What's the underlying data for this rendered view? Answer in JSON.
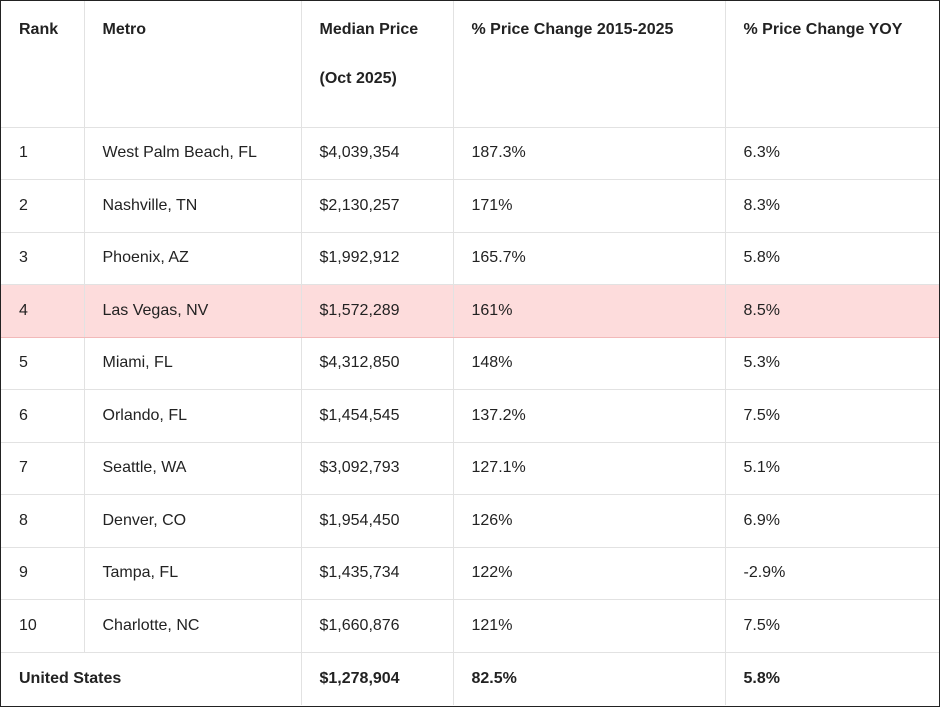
{
  "table": {
    "header": [
      "Rank",
      "Metro",
      [
        "Median Price",
        "(Oct 2025)"
      ],
      "% Price Change 2015-2025",
      "% Price Change YOY"
    ],
    "rows": [
      [
        "1",
        "West Palm Beach, FL",
        "$4,039,354",
        "187.3%",
        "6.3%"
      ],
      [
        "2",
        "Nashville, TN",
        "$2,130,257",
        "171%",
        "8.3%"
      ],
      [
        "3",
        "Phoenix, AZ",
        "$1,992,912",
        "165.7%",
        "5.8%"
      ],
      [
        "4",
        "Las Vegas, NV",
        "$1,572,289",
        "161%",
        "8.5%"
      ],
      [
        "5",
        "Miami, FL",
        "$4,312,850",
        "148%",
        "5.3%"
      ],
      [
        "6",
        "Orlando, FL",
        "$1,454,545",
        "137.2%",
        "7.5%"
      ],
      [
        "7",
        "Seattle, WA",
        "$3,092,793",
        "127.1%",
        "5.1%"
      ],
      [
        "8",
        "Denver, CO",
        "$1,954,450",
        "126%",
        "6.9%"
      ],
      [
        "9",
        "Tampa, FL",
        "$1,435,734",
        "122%",
        "-2.9%"
      ],
      [
        "10",
        "Charlotte, NC",
        "$1,660,876",
        "121%",
        "7.5%"
      ]
    ],
    "footer": [
      "United States",
      "$1,278,904",
      "82.5%",
      "5.8%"
    ]
  }
}
